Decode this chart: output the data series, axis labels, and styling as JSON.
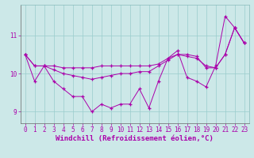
{
  "xlabel": "Windchill (Refroidissement éolien,°C)",
  "bg_color": "#cce8e8",
  "grid_color": "#99cccc",
  "line_color": "#aa00aa",
  "marker": "+",
  "xlim": [
    -0.5,
    23.5
  ],
  "ylim": [
    8.7,
    11.8
  ],
  "yticks": [
    9,
    10,
    11
  ],
  "xticks": [
    0,
    1,
    2,
    3,
    4,
    5,
    6,
    7,
    8,
    9,
    10,
    11,
    12,
    13,
    14,
    15,
    16,
    17,
    18,
    19,
    20,
    21,
    22,
    23
  ],
  "series1": [
    10.5,
    9.8,
    10.2,
    9.8,
    9.6,
    9.4,
    9.4,
    9.0,
    9.2,
    9.1,
    9.2,
    9.2,
    9.6,
    9.1,
    9.8,
    10.4,
    10.6,
    9.9,
    9.8,
    9.65,
    10.2,
    11.5,
    11.2,
    10.8
  ],
  "series2": [
    10.5,
    10.2,
    10.2,
    10.2,
    10.15,
    10.15,
    10.15,
    10.15,
    10.2,
    10.2,
    10.2,
    10.2,
    10.2,
    10.2,
    10.25,
    10.4,
    10.5,
    10.5,
    10.45,
    10.15,
    10.15,
    10.5,
    11.2,
    10.8
  ],
  "series3": [
    10.5,
    10.2,
    10.2,
    10.1,
    10.0,
    9.95,
    9.9,
    9.85,
    9.9,
    9.95,
    10.0,
    10.0,
    10.05,
    10.05,
    10.2,
    10.35,
    10.5,
    10.45,
    10.4,
    10.2,
    10.15,
    10.5,
    11.2,
    10.8
  ],
  "tick_fontsize": 5.5,
  "xlabel_fontsize": 6.5
}
